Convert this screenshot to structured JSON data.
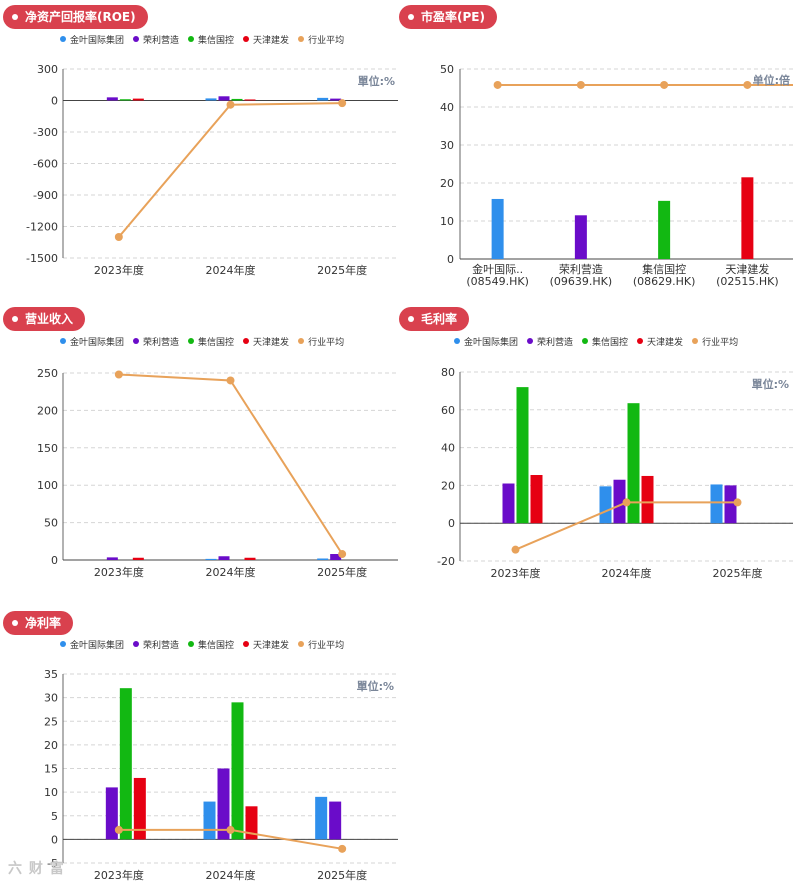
{
  "series_names": [
    "金叶国际集团",
    "荣利营造",
    "集信国控",
    "天津建发",
    "行业平均"
  ],
  "colors": {
    "jinye": "#2f8fec",
    "rongli": "#6a0cc9",
    "jixin": "#12b812",
    "tianjin": "#e60012",
    "avg": "#e8a25a",
    "accent": "#d9414e"
  },
  "titles": {
    "roe": "净资产回报率(ROE)",
    "pe": "市盈率(PE)",
    "revenue": "营业收入",
    "gross": "毛利率",
    "net": "净利率"
  },
  "units": {
    "roe": "單位:%",
    "pe": "单位:倍",
    "gross": "單位:%",
    "net": "單位:%"
  },
  "watermark": "六 财 富 ",
  "chart_data": [
    {
      "id": "roe",
      "type": "bar",
      "title": "净资产回报率(ROE)",
      "unit_label": "單位:%",
      "categories": [
        "2023年度",
        "2024年度",
        "2025年度"
      ],
      "ylim": [
        -1500,
        300
      ],
      "yticks": [
        300,
        0,
        -300,
        -600,
        -900,
        -1200,
        -1500
      ],
      "series": [
        {
          "name": "金叶国际集团",
          "values": [
            null,
            20,
            25
          ]
        },
        {
          "name": "荣利营造",
          "values": [
            30,
            40,
            18
          ]
        },
        {
          "name": "集信国控",
          "values": [
            12,
            15,
            null
          ]
        },
        {
          "name": "天津建发",
          "values": [
            18,
            10,
            null
          ]
        }
      ],
      "line": {
        "name": "行业平均",
        "values": [
          -1300,
          -40,
          -25
        ]
      }
    },
    {
      "id": "pe",
      "type": "bar",
      "title": "市盈率(PE)",
      "unit_label": "单位:倍",
      "categories": [
        "金叶国际..(08549.HK)",
        "荣利营造(09639.HK)",
        "集信国控(08629.HK)",
        "天津建发(02515.HK)"
      ],
      "category_lines": [
        [
          "金叶国际..",
          "(08549.HK)"
        ],
        [
          "荣利营造",
          "(09639.HK)"
        ],
        [
          "集信国控",
          "(08629.HK)"
        ],
        [
          "天津建发",
          "(02515.HK)"
        ]
      ],
      "ylim": [
        0,
        50
      ],
      "yticks": [
        50,
        40,
        30,
        20,
        10,
        0
      ],
      "values": [
        15.8,
        11.5,
        15.3,
        21.5
      ],
      "line": {
        "name": "行业平均",
        "values": [
          45.8,
          45.8,
          45.8,
          45.8
        ]
      }
    },
    {
      "id": "revenue",
      "type": "bar",
      "title": "营业收入",
      "categories": [
        "2023年度",
        "2024年度",
        "2025年度"
      ],
      "ylim": [
        0,
        250
      ],
      "yticks": [
        250,
        200,
        150,
        100,
        50,
        0
      ],
      "series": [
        {
          "name": "金叶国际集团",
          "values": [
            null,
            1.5,
            2
          ]
        },
        {
          "name": "荣利营造",
          "values": [
            3.5,
            5,
            8
          ]
        },
        {
          "name": "集信国控",
          "values": [
            null,
            null,
            null
          ]
        },
        {
          "name": "天津建发",
          "values": [
            3,
            3,
            null
          ]
        }
      ],
      "line": {
        "name": "行业平均",
        "values": [
          248,
          240,
          8
        ]
      }
    },
    {
      "id": "gross",
      "type": "bar",
      "title": "毛利率",
      "unit_label": "單位:%",
      "categories": [
        "2023年度",
        "2024年度",
        "2025年度"
      ],
      "ylim": [
        -20,
        80
      ],
      "yticks": [
        80,
        60,
        40,
        20,
        0,
        -20
      ],
      "series": [
        {
          "name": "金叶国际集团",
          "values": [
            null,
            19.5,
            20.5
          ]
        },
        {
          "name": "荣利营造",
          "values": [
            21,
            23,
            20
          ]
        },
        {
          "name": "集信国控",
          "values": [
            72,
            63.5,
            null
          ]
        },
        {
          "name": "天津建发",
          "values": [
            25.5,
            25,
            null
          ]
        }
      ],
      "line": {
        "name": "行业平均",
        "values": [
          -14,
          11,
          11
        ]
      }
    },
    {
      "id": "net",
      "type": "bar",
      "title": "净利率",
      "unit_label": "單位:%",
      "categories": [
        "2023年度",
        "2024年度",
        "2025年度"
      ],
      "ylim": [
        -5,
        35
      ],
      "yticks": [
        35,
        30,
        25,
        20,
        15,
        10,
        5,
        0,
        -5
      ],
      "series": [
        {
          "name": "金叶国际集团",
          "values": [
            null,
            8,
            9
          ]
        },
        {
          "name": "荣利营造",
          "values": [
            11,
            15,
            8
          ]
        },
        {
          "name": "集信国控",
          "values": [
            32,
            29,
            null
          ]
        },
        {
          "name": "天津建发",
          "values": [
            13,
            7,
            null
          ]
        }
      ],
      "line": {
        "name": "行业平均",
        "values": [
          2,
          2,
          -2
        ]
      }
    }
  ]
}
